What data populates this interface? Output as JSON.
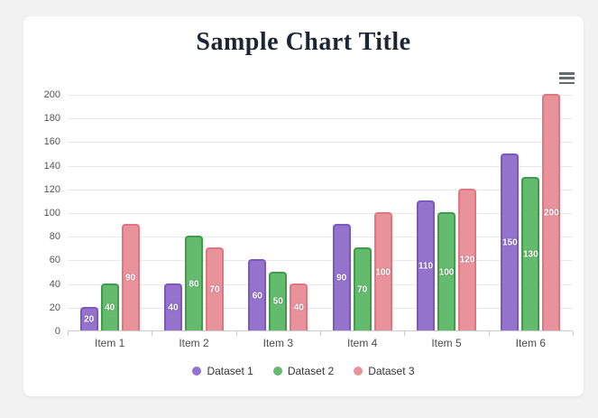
{
  "page": {
    "background_color": "#f2f2f2",
    "card_color": "#ffffff"
  },
  "header": {
    "title": "Sample Chart Title",
    "title_color": "#1c2533",
    "menu_icon": "hamburger-menu-icon",
    "menu_icon_color": "#666b6b"
  },
  "chart_data": {
    "type": "bar",
    "title": "Sample Chart Title",
    "categories": [
      "Item 1",
      "Item 2",
      "Item 3",
      "Item 4",
      "Item 5",
      "Item 6"
    ],
    "series": [
      {
        "name": "Dataset 1",
        "values": [
          20,
          40,
          60,
          90,
          110,
          150
        ],
        "fill": "#9473cd",
        "border": "#7c57c2"
      },
      {
        "name": "Dataset 2",
        "values": [
          40,
          80,
          50,
          70,
          100,
          130
        ],
        "fill": "#64bb6e",
        "border": "#3e9d4a"
      },
      {
        "name": "Dataset 3",
        "values": [
          90,
          70,
          40,
          100,
          120,
          200
        ],
        "fill": "#e8939c",
        "border": "#e1767e"
      }
    ],
    "xlabel": "",
    "ylabel": "",
    "ylim": [
      0,
      200
    ],
    "y_step": 20,
    "y_tick_labels": [
      "0",
      "20",
      "40",
      "60",
      "80",
      "100",
      "120",
      "140",
      "160",
      "180",
      "200"
    ],
    "grid": true,
    "gridline_color": "#e9e9e9",
    "axis_line_color": "#cccccc",
    "value_labels_shown": true,
    "value_label_color": "#ffffff",
    "legend_position": "bottom"
  }
}
